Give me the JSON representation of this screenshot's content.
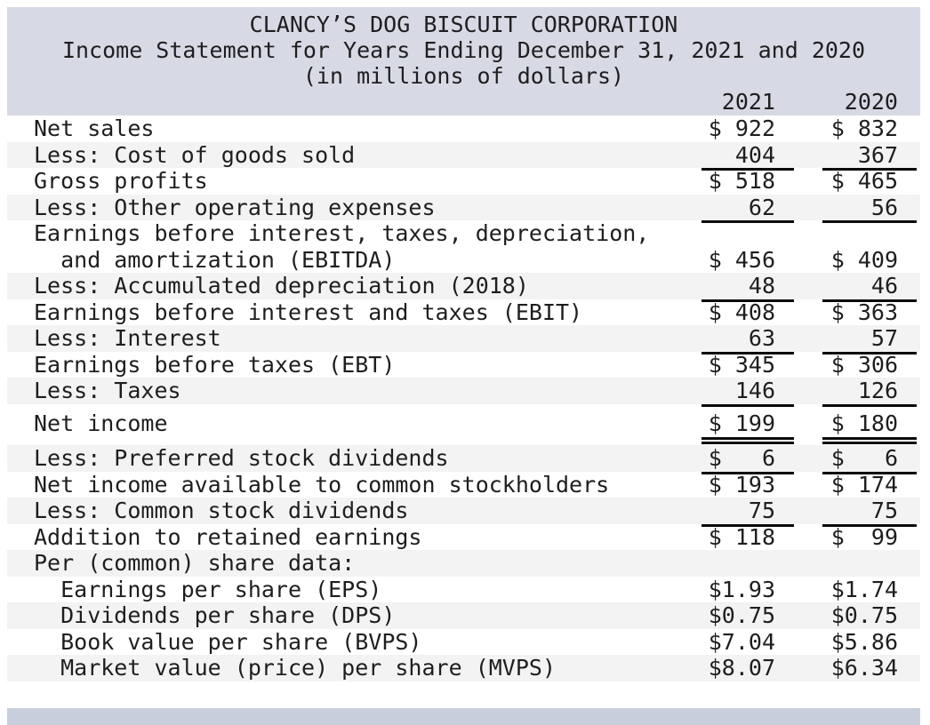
{
  "header": {
    "title": "CLANCY’S DOG BISCUIT CORPORATION",
    "subtitle": "Income Statement for Years Ending December 31, 2021 and 2020",
    "unit_note": "(in millions of dollars)",
    "col_2021": "2021",
    "col_2020": "2020"
  },
  "colors": {
    "band": "#d7dae5",
    "footer": "#c9cedd",
    "stripe": "#f3f3f4",
    "rule": "#0a0a0a",
    "text": "#1e1e20"
  },
  "table": {
    "rows": [
      {
        "lines": [
          "Net sales"
        ],
        "v2021": "$ 922",
        "v2020": "$ 832",
        "stripe": false,
        "rule": "none"
      },
      {
        "lines": [
          "Less: Cost of goods sold"
        ],
        "v2021": "404",
        "v2020": "367",
        "stripe": true,
        "rule": "single"
      },
      {
        "lines": [
          "Gross profits"
        ],
        "v2021": "$ 518",
        "v2020": "$ 465",
        "stripe": false,
        "rule": "none"
      },
      {
        "lines": [
          "Less: Other operating expenses"
        ],
        "v2021": "62",
        "v2020": "56",
        "stripe": true,
        "rule": "single"
      },
      {
        "lines": [
          "Earnings before interest, taxes, depreciation,",
          "  and amortization (EBITDA)"
        ],
        "v2021": "$ 456",
        "v2020": "$ 409",
        "stripe": false,
        "rule": "none"
      },
      {
        "lines": [
          "Less: Accumulated depreciation (2018)"
        ],
        "v2021": "48",
        "v2020": "46",
        "stripe": true,
        "rule": "single"
      },
      {
        "lines": [
          "Earnings before interest and taxes (EBIT)"
        ],
        "v2021": "$ 408",
        "v2020": "$ 363",
        "stripe": false,
        "rule": "none"
      },
      {
        "lines": [
          "Less: Interest"
        ],
        "v2021": "63",
        "v2020": "57",
        "stripe": true,
        "rule": "single"
      },
      {
        "lines": [
          "Earnings before taxes (EBT)"
        ],
        "v2021": "$ 345",
        "v2020": "$ 306",
        "stripe": false,
        "rule": "none"
      },
      {
        "lines": [
          "Less: Taxes"
        ],
        "v2021": "146",
        "v2020": "126",
        "stripe": true,
        "rule": "single"
      },
      {
        "lines": [
          "Net income"
        ],
        "v2021": "$ 199",
        "v2020": "$ 180",
        "stripe": false,
        "rule": "double",
        "gap_before": 7
      },
      {
        "lines": [
          "Less: Preferred stock dividends"
        ],
        "v2021": "$   6",
        "v2020": "$   6",
        "stripe": true,
        "rule": "single",
        "gap_before": 10
      },
      {
        "lines": [
          "Net income available to common stockholders"
        ],
        "v2021": "$ 193",
        "v2020": "$ 174",
        "stripe": false,
        "rule": "none"
      },
      {
        "lines": [
          "Less: Common stock dividends"
        ],
        "v2021": "75",
        "v2020": "75",
        "stripe": true,
        "rule": "single"
      },
      {
        "lines": [
          "Addition to retained earnings"
        ],
        "v2021": "$ 118",
        "v2020": "$  99",
        "stripe": false,
        "rule": "none"
      },
      {
        "lines": [
          "Per (common) share data:"
        ],
        "v2021": "",
        "v2020": "",
        "stripe": true,
        "rule": "none"
      },
      {
        "lines": [
          "  Earnings per share (EPS)"
        ],
        "v2021": "$1.93",
        "v2020": "$1.74",
        "stripe": false,
        "rule": "none"
      },
      {
        "lines": [
          "  Dividends per share (DPS)"
        ],
        "v2021": "$0.75",
        "v2020": "$0.75",
        "stripe": true,
        "rule": "none"
      },
      {
        "lines": [
          "  Book value per share (BVPS)"
        ],
        "v2021": "$7.04",
        "v2020": "$5.86",
        "stripe": false,
        "rule": "none"
      },
      {
        "lines": [
          "  Market value (price) per share (MVPS)"
        ],
        "v2021": "$8.07",
        "v2020": "$6.34",
        "stripe": true,
        "rule": "none"
      }
    ]
  }
}
